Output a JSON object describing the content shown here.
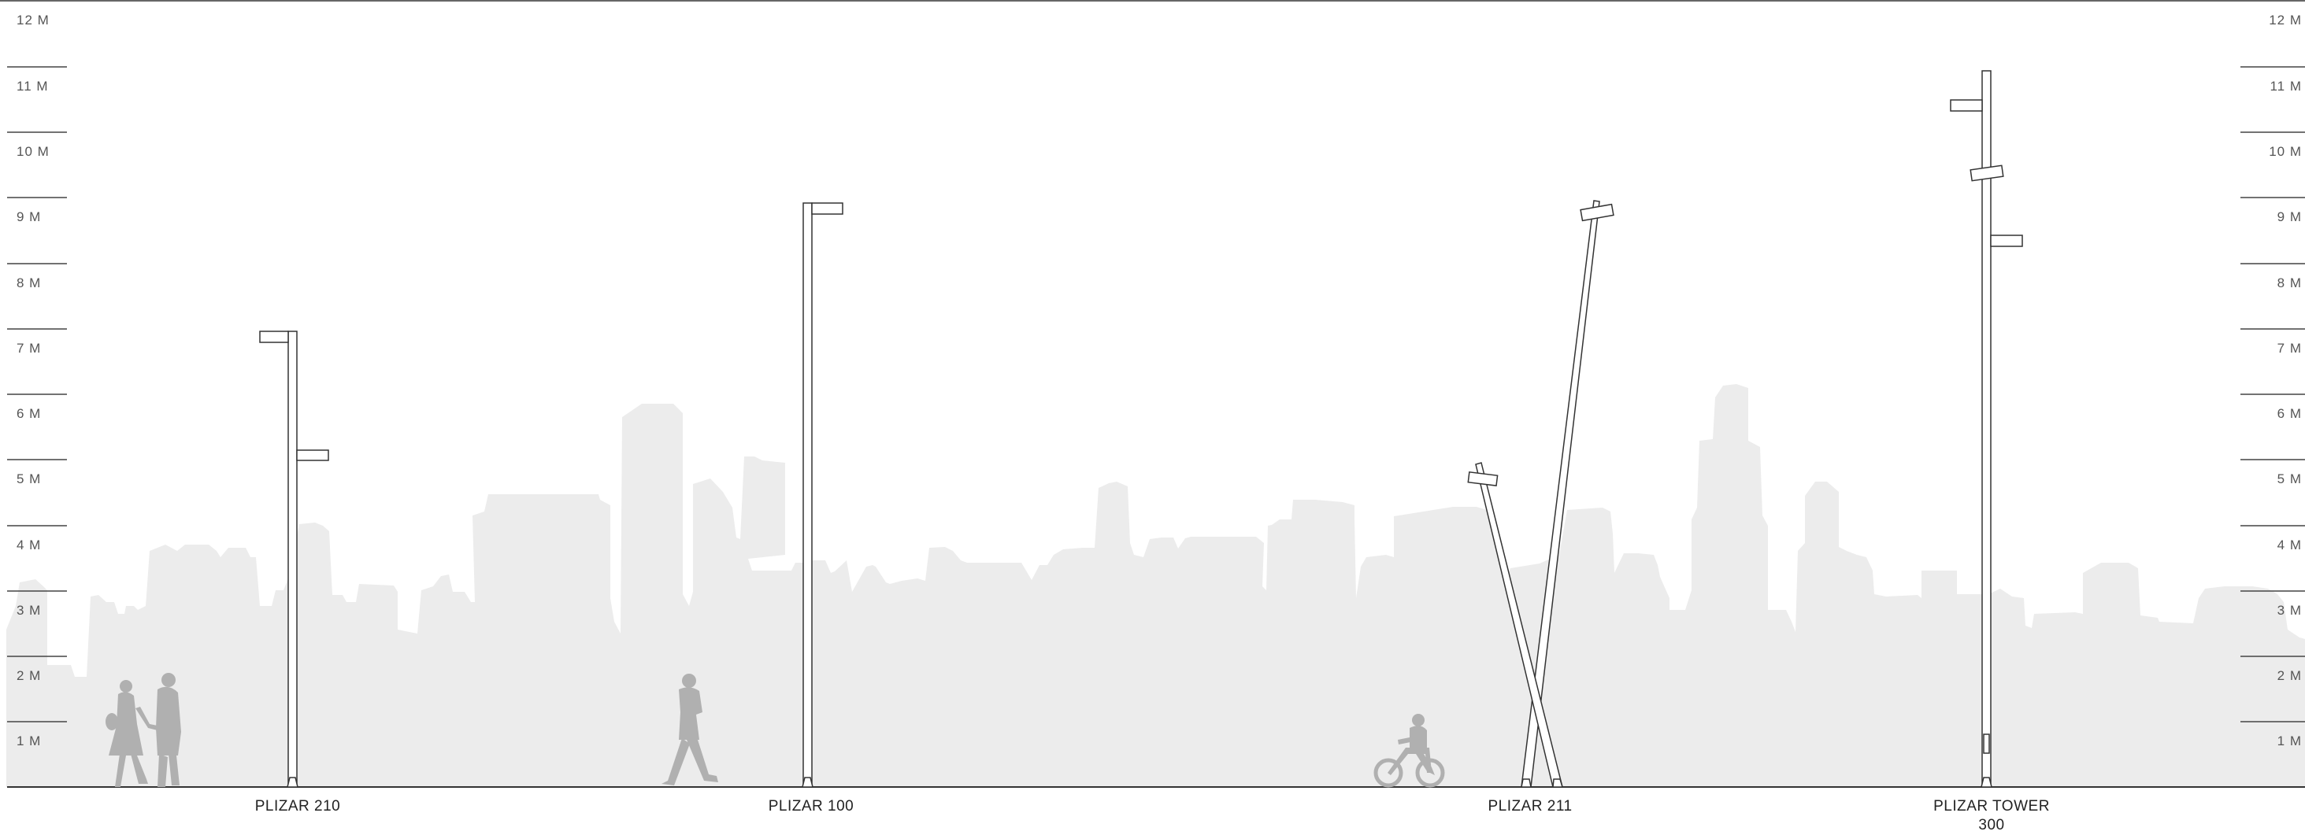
{
  "scale": {
    "unit": "M",
    "labels": [
      "1 M",
      "2 M",
      "3 M",
      "4 M",
      "5 M",
      "6 M",
      "7 M",
      "8 M",
      "9 M",
      "10 M",
      "11 M",
      "12 M"
    ]
  },
  "poles": [
    {
      "name": "PLIZAR 210",
      "lines": [
        "PLIZAR 210"
      ]
    },
    {
      "name": "PLIZAR 100",
      "lines": [
        "PLIZAR 100"
      ]
    },
    {
      "name": "PLIZAR 211",
      "lines": [
        "PLIZAR 211"
      ]
    },
    {
      "name": "PLIZAR TOWER 300",
      "lines": [
        "PLIZAR TOWER",
        "300"
      ]
    }
  ],
  "figures": [
    "walking-couple",
    "walking-person",
    "child-on-bicycle"
  ],
  "colors": {
    "skyline": "#ececec",
    "figure": "#b0b0b0",
    "pole_stroke": "#333333",
    "scale_line": "#444444",
    "meter_text": "#555555"
  }
}
